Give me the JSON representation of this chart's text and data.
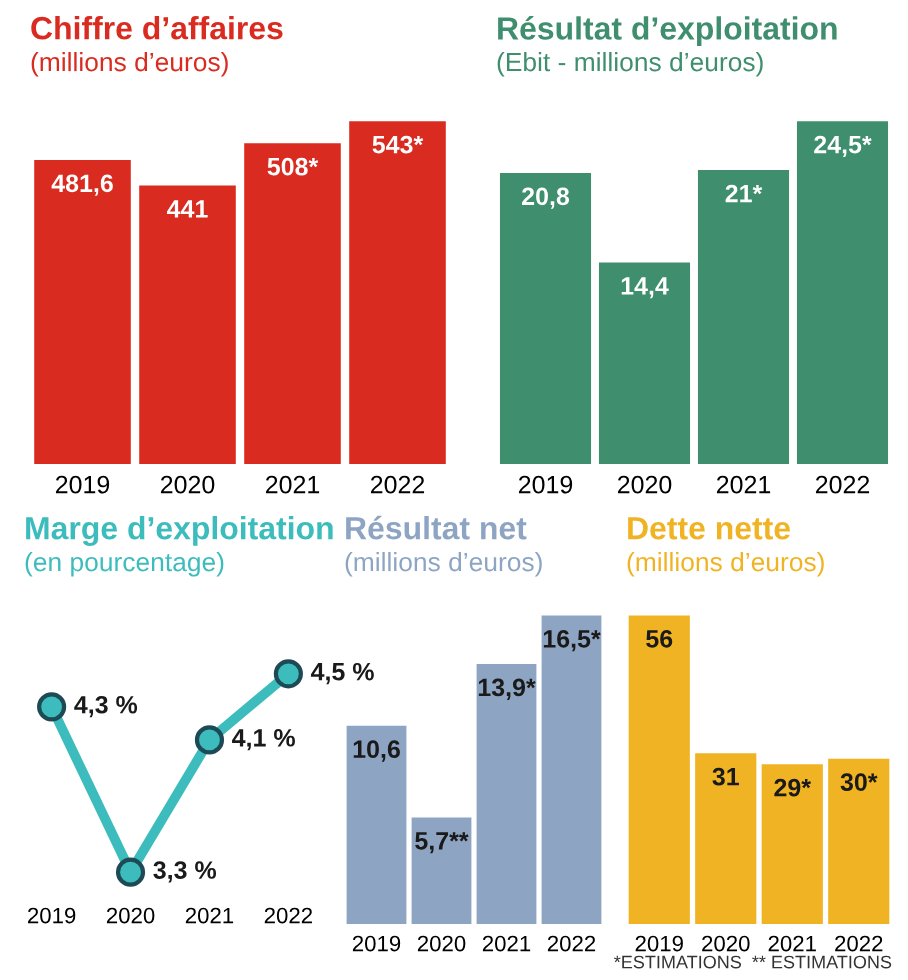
{
  "chart_data": [
    {
      "type": "bar",
      "title": "Chiffre d’affaires",
      "subtitle": "(millions d’euros)",
      "categories": [
        "2019",
        "2020",
        "2021",
        "2022"
      ],
      "values": [
        481.6,
        441,
        508,
        543
      ],
      "value_labels": [
        "481,6",
        "441",
        "508*",
        "543*"
      ],
      "color": "#d92b20",
      "tick_labels": "x"
    },
    {
      "type": "bar",
      "title": "Résultat d’exploitation",
      "subtitle": "(Ebit - millions d’euros)",
      "categories": [
        "2019",
        "2020",
        "2021",
        "2022"
      ],
      "values": [
        20.8,
        14.4,
        21,
        24.5
      ],
      "value_labels": [
        "20,8",
        "14,4",
        "21*",
        "24,5*"
      ],
      "color": "#3f8e6e",
      "tick_labels": "x"
    },
    {
      "type": "line",
      "title": "Marge d’exploitation",
      "subtitle": "(en pourcentage)",
      "categories": [
        "2019",
        "2020",
        "2021",
        "2022"
      ],
      "values": [
        4.3,
        3.3,
        4.1,
        4.5
      ],
      "value_labels": [
        "4,3 %",
        "3,3 %",
        "4,1 %",
        "4,5 %"
      ],
      "color": "#3cbcbc",
      "marker": "circle",
      "tick_labels": "x"
    },
    {
      "type": "bar",
      "title": "Résultat net",
      "subtitle": "(millions d’euros)",
      "categories": [
        "2019",
        "2020",
        "2021",
        "2022"
      ],
      "values": [
        10.6,
        5.7,
        13.9,
        16.5
      ],
      "value_labels": [
        "10,6",
        "5,7**",
        "13,9*",
        "16,5*"
      ],
      "color": "#8da5c3",
      "tick_labels": "x"
    },
    {
      "type": "bar",
      "title": "Dette nette",
      "subtitle": "(millions d’euros)",
      "categories": [
        "2019",
        "2020",
        "2021",
        "2022"
      ],
      "values": [
        56,
        31,
        29,
        30
      ],
      "value_labels": [
        "56",
        "31",
        "29*",
        "30*"
      ],
      "color": "#f0b323",
      "tick_labels": "x",
      "annotations": [
        "*ESTIMATIONS  ** ESTIMATIONS"
      ]
    }
  ]
}
